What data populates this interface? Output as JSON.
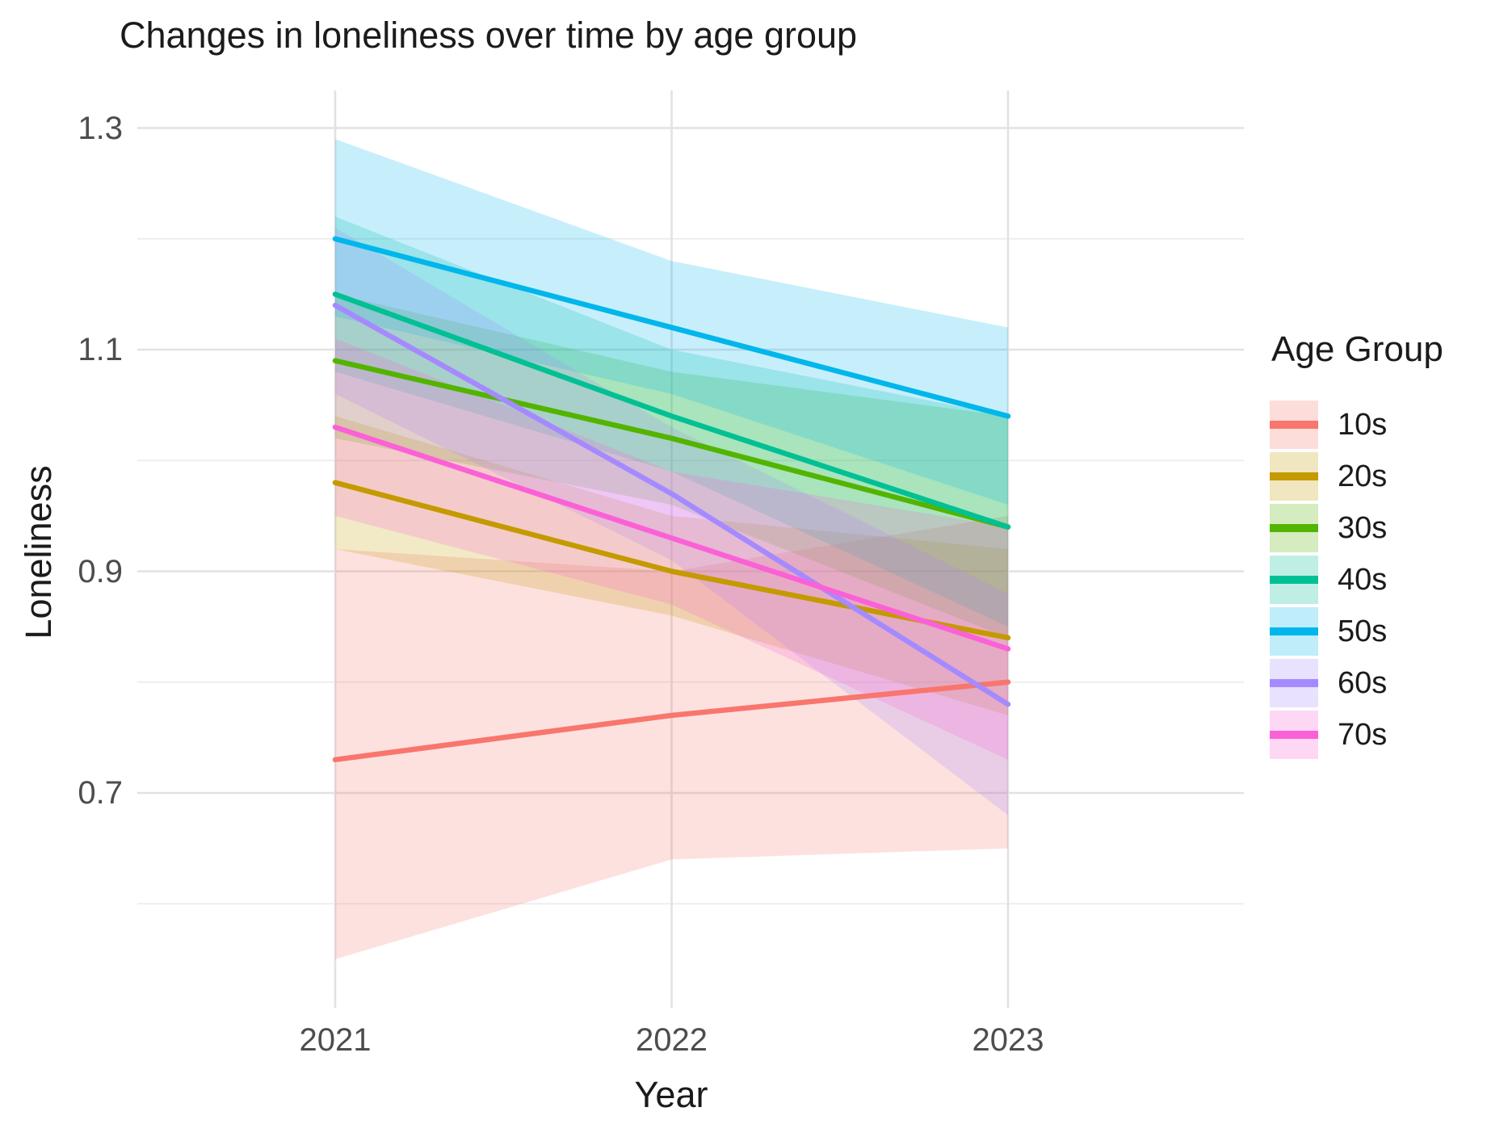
{
  "title": "Changes in loneliness over time by age group",
  "axes": {
    "x": {
      "label": "Year",
      "tick_labels": [
        "2021",
        "2022",
        "2023"
      ],
      "tick_values": [
        2021,
        2022,
        2023
      ]
    },
    "y": {
      "label": "Loneliness",
      "tick_labels": [
        "1.3",
        "1.1",
        "0.9",
        "0.7"
      ],
      "tick_values": [
        1.3,
        1.1,
        0.9,
        0.7
      ],
      "minor_grid_values": [
        1.2,
        1.0,
        0.8,
        0.6
      ]
    }
  },
  "legend": {
    "title": "Age Group",
    "items": [
      "10s",
      "20s",
      "30s",
      "40s",
      "50s",
      "60s",
      "70s"
    ]
  },
  "colors": {
    "series": {
      "10s": "#F8766D",
      "20s": "#C49A00",
      "30s": "#53B400",
      "40s": "#00C094",
      "50s": "#00B6EB",
      "60s": "#A58AFF",
      "70s": "#FB61D7"
    },
    "grid_major": "#E2E2E2",
    "grid_minor": "#ECECEC",
    "tick_text": "#4D4D4D",
    "text": "#1B1B1B",
    "background": "#FFFFFF"
  },
  "chart_data": {
    "type": "line",
    "title": "Changes in loneliness over time by age group",
    "xlabel": "Year",
    "ylabel": "Loneliness",
    "x": [
      2021,
      2022,
      2023
    ],
    "ylim": [
      0.545,
      1.335
    ],
    "grid": true,
    "legend_position": "right",
    "ribbon_alpha": 0.22,
    "series": [
      {
        "name": "10s",
        "color": "#F8766D",
        "values": [
          0.73,
          0.77,
          0.8
        ],
        "ci_lower": [
          0.55,
          0.64,
          0.65
        ],
        "ci_upper": [
          0.92,
          0.9,
          0.95
        ]
      },
      {
        "name": "20s",
        "color": "#C49A00",
        "values": [
          0.98,
          0.9,
          0.84
        ],
        "ci_lower": [
          0.92,
          0.86,
          0.77
        ],
        "ci_upper": [
          1.04,
          0.95,
          0.92
        ]
      },
      {
        "name": "30s",
        "color": "#53B400",
        "values": [
          1.09,
          1.02,
          0.94
        ],
        "ci_lower": [
          1.02,
          0.96,
          0.84
        ],
        "ci_upper": [
          1.15,
          1.08,
          1.04
        ]
      },
      {
        "name": "40s",
        "color": "#00C094",
        "values": [
          1.15,
          1.04,
          0.94
        ],
        "ci_lower": [
          1.08,
          0.99,
          0.85
        ],
        "ci_upper": [
          1.22,
          1.1,
          1.04
        ]
      },
      {
        "name": "50s",
        "color": "#00B6EB",
        "values": [
          1.2,
          1.12,
          1.04
        ],
        "ci_lower": [
          1.13,
          1.06,
          0.96
        ],
        "ci_upper": [
          1.29,
          1.18,
          1.12
        ]
      },
      {
        "name": "60s",
        "color": "#A58AFF",
        "values": [
          1.14,
          0.97,
          0.78
        ],
        "ci_lower": [
          1.06,
          0.91,
          0.68
        ],
        "ci_upper": [
          1.21,
          1.03,
          0.88
        ]
      },
      {
        "name": "70s",
        "color": "#FB61D7",
        "values": [
          1.03,
          0.93,
          0.83
        ],
        "ci_lower": [
          0.95,
          0.87,
          0.73
        ],
        "ci_upper": [
          1.11,
          0.99,
          0.94
        ]
      }
    ]
  }
}
